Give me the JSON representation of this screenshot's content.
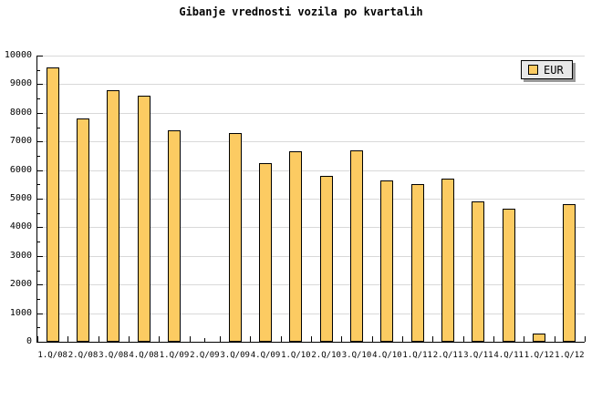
{
  "title": "Gibanje vrednosti vozila po kvartalih",
  "legend": {
    "label": "EUR",
    "position": "top-right"
  },
  "style": {
    "background": "#FFFFFF",
    "bar_fill": "#FCCB62",
    "bar_border": "#000000",
    "grid_color": "#D9D9D9",
    "axis_color": "#000000",
    "text_color": "#000000",
    "legend_bg": "#E8E8E8",
    "legend_border": "#000000",
    "legend_shadow": "#999999"
  },
  "chart_data": {
    "type": "bar",
    "title": "Gibanje vrednosti vozila po kvartalih",
    "categories": [
      "1.Q/08",
      "2.Q/08",
      "3.Q/08",
      "4.Q/08",
      "1.Q/09",
      "2.Q/09",
      "3.Q/09",
      "4.Q/09",
      "1.Q/10",
      "2.Q/10",
      "3.Q/10",
      "4.Q/10",
      "1.Q/11",
      "2.Q/11",
      "3.Q/11",
      "4.Q/11",
      "1.Q/12",
      "1.Q/12"
    ],
    "series": [
      {
        "name": "EUR",
        "values": [
          9600,
          7800,
          8800,
          8600,
          7400,
          0,
          7300,
          6250,
          6650,
          5800,
          6700,
          5650,
          5500,
          5700,
          4900,
          4650,
          300,
          4800
        ]
      }
    ],
    "xlabel": "",
    "ylabel": "",
    "ylim": [
      0,
      10000
    ],
    "y_major_step": 1000,
    "y_minor_step": 500,
    "y_tick_labels": [
      "0",
      "1000",
      "2000",
      "3000",
      "4000",
      "5000",
      "6000",
      "7000",
      "8000",
      "9000",
      "10000"
    ],
    "grid": "horizontal",
    "legend_position": "top-right",
    "notes": "Bar for 2.Q/09 has no value (missing/zero)."
  }
}
